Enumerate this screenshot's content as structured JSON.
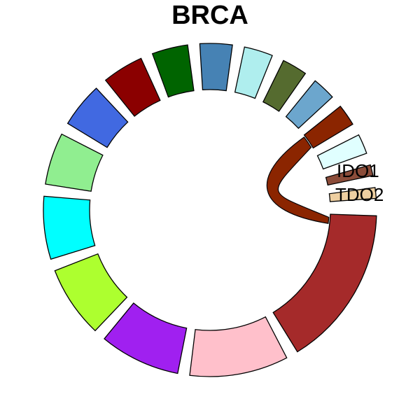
{
  "chart_data": {
    "type": "chord",
    "title": "BRCA",
    "sectors": [
      {
        "label": "",
        "value": 9.0,
        "color": "#A52A2A"
      },
      {
        "label": "",
        "value": 5.5,
        "color": "#FFC0CB"
      },
      {
        "label": "",
        "value": 4.5,
        "color": "#A020F0"
      },
      {
        "label": "",
        "value": 4.0,
        "color": "#ADFF2F"
      },
      {
        "label": "",
        "value": 3.5,
        "color": "#00FFFF"
      },
      {
        "label": "",
        "value": 2.9,
        "color": "#90EE90"
      },
      {
        "label": "",
        "value": 2.5,
        "color": "#4169E1"
      },
      {
        "label": "",
        "value": 2.3,
        "color": "#8B0000"
      },
      {
        "label": "",
        "value": 2.0,
        "color": "#006400"
      },
      {
        "label": "",
        "value": 1.8,
        "color": "#4682B4"
      },
      {
        "label": "",
        "value": 1.6,
        "color": "#AFEEEE"
      },
      {
        "label": "",
        "value": 1.4,
        "color": "#556B2F"
      },
      {
        "label": "",
        "value": 1.3,
        "color": "#6CA6CD"
      },
      {
        "label": "",
        "value": 1.2,
        "color": "#8B2500"
      },
      {
        "label": "",
        "value": 1.1,
        "color": "#E0FFFF"
      },
      {
        "label": "",
        "value": 0.6,
        "color": "#8B4C39"
      },
      {
        "label": "",
        "value": 0.6,
        "color": "#EECFA1"
      }
    ],
    "labels": [
      "IDO1",
      "TDO2"
    ],
    "links": [
      {
        "from_sector": 13,
        "to_sector": 0,
        "color": "#8B2500"
      }
    ]
  }
}
